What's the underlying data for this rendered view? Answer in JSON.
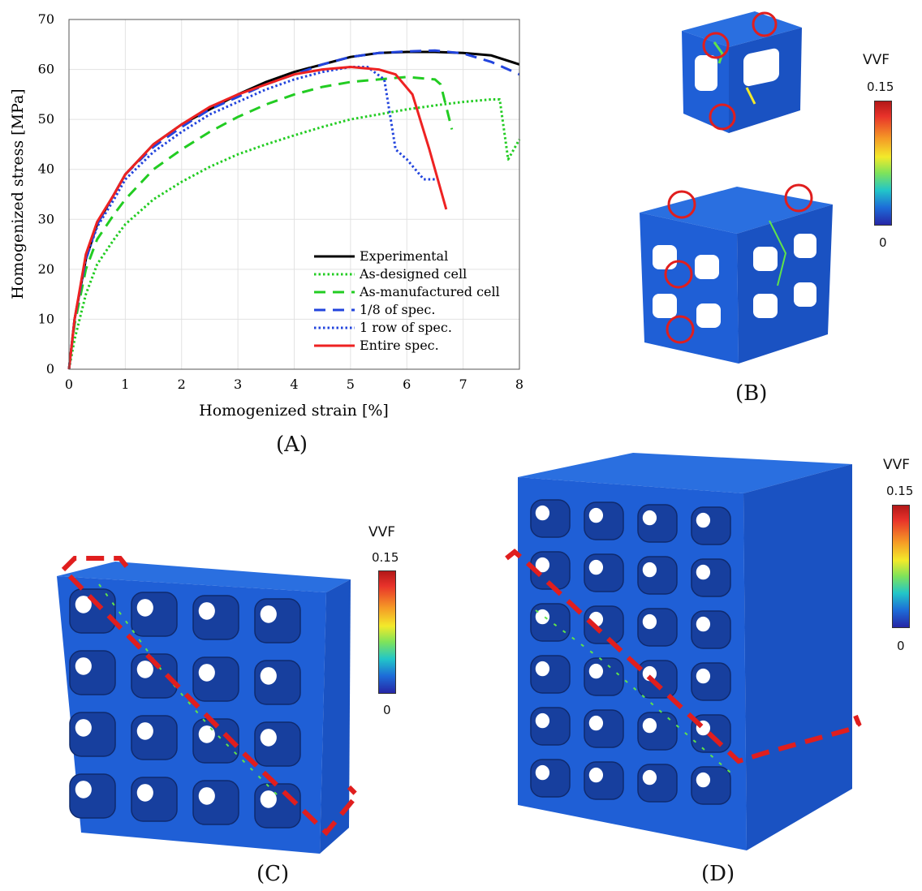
{
  "chart_data": {
    "type": "line",
    "xlabel": "Homogenized strain [%]",
    "ylabel": "Homogenized stress [MPa]",
    "xlim": [
      0,
      8
    ],
    "ylim": [
      0,
      70
    ],
    "xticks": [
      0,
      1,
      2,
      3,
      4,
      5,
      6,
      7,
      8
    ],
    "yticks": [
      0,
      10,
      20,
      30,
      40,
      50,
      60,
      70
    ],
    "grid": true,
    "legend_position": "bottom-right",
    "series": [
      {
        "name": "Experimental",
        "color": "#000000",
        "dash": "solid",
        "x": [
          0,
          0.1,
          0.3,
          0.5,
          0.8,
          1.0,
          1.5,
          2.0,
          2.5,
          3.0,
          3.5,
          4.0,
          4.5,
          5.0,
          5.5,
          6.0,
          6.5,
          7.0,
          7.5,
          8.0
        ],
        "y": [
          0,
          10,
          22,
          29,
          35,
          39,
          45,
          49,
          52,
          55,
          57.5,
          59.5,
          61,
          62.5,
          63.3,
          63.5,
          63.5,
          63.3,
          62.8,
          61
        ]
      },
      {
        "name": "As-designed cell",
        "color": "#22cc22",
        "dash": "dotted",
        "x": [
          0,
          0.1,
          0.3,
          0.5,
          0.8,
          1.0,
          1.5,
          2.0,
          2.5,
          3.0,
          3.5,
          4.0,
          4.5,
          5.0,
          5.5,
          6.0,
          6.5,
          7.0,
          7.5,
          7.65,
          7.8,
          8.0
        ],
        "y": [
          0,
          6,
          15,
          21,
          26,
          29,
          34,
          37.5,
          40.5,
          43,
          45,
          46.8,
          48.5,
          50,
          51,
          52,
          52.8,
          53.5,
          54,
          54,
          42,
          46
        ]
      },
      {
        "name": "As-manufactured cell",
        "color": "#22cc22",
        "dash": "dashed",
        "x": [
          0,
          0.1,
          0.3,
          0.5,
          0.8,
          1.0,
          1.5,
          2.0,
          2.5,
          3.0,
          3.5,
          4.0,
          4.5,
          5.0,
          5.5,
          6.0,
          6.5,
          6.6,
          6.8
        ],
        "y": [
          0,
          9,
          20,
          26,
          31,
          34,
          40,
          44,
          47.5,
          50.5,
          53,
          55,
          56.5,
          57.5,
          58,
          58.5,
          58,
          57,
          48
        ]
      },
      {
        "name": "1/8 of spec.",
        "color": "#2244dd",
        "dash": "dashed",
        "x": [
          0,
          0.1,
          0.3,
          0.5,
          0.8,
          1.0,
          1.5,
          2.0,
          2.5,
          3.0,
          3.5,
          4.0,
          4.5,
          5.0,
          5.5,
          6.0,
          6.5,
          7.0,
          7.5,
          8.0
        ],
        "y": [
          0,
          10,
          22,
          29,
          35,
          39,
          44.5,
          48.5,
          52,
          54.5,
          57,
          59,
          61,
          62.5,
          63.3,
          63.6,
          63.8,
          63.2,
          61.5,
          59
        ]
      },
      {
        "name": "1 row of spec.",
        "color": "#2244dd",
        "dash": "dotted",
        "x": [
          0,
          0.1,
          0.3,
          0.5,
          0.8,
          1.0,
          1.5,
          2.0,
          2.5,
          3.0,
          3.5,
          4.0,
          4.5,
          5.0,
          5.3,
          5.6,
          5.8,
          6.0,
          6.3,
          6.5
        ],
        "y": [
          0,
          10,
          22,
          28.5,
          34,
          38,
          43.5,
          47.5,
          51,
          53.5,
          56,
          58,
          59.5,
          60.5,
          60.5,
          58,
          44,
          42,
          38,
          38
        ]
      },
      {
        "name": "Entire spec.",
        "color": "#ee2222",
        "dash": "solid",
        "x": [
          0,
          0.1,
          0.3,
          0.5,
          0.8,
          1.0,
          1.5,
          2.0,
          2.5,
          3.0,
          3.5,
          4.0,
          4.5,
          5.0,
          5.5,
          5.8,
          6.1,
          6.4,
          6.7
        ],
        "y": [
          0,
          10,
          23,
          29.5,
          35,
          39,
          45,
          49,
          52.5,
          55,
          57,
          59,
          60,
          60.5,
          60,
          59,
          55,
          44,
          32
        ]
      }
    ]
  },
  "panels": {
    "a_label": "(A)",
    "b_label": "(B)",
    "c_label": "(C)",
    "d_label": "(D)"
  },
  "colorbar": {
    "title": "VVF",
    "max": "0.15",
    "min": "0",
    "colors": [
      "#b31818",
      "#f3ea2a",
      "#22c6c8",
      "#2626a6"
    ]
  },
  "render_colors": {
    "lattice_blue": "#1f5fd6",
    "lattice_dark": "#173f9e",
    "highlight_red": "#e01e1e",
    "damage_green": "#5fe34a",
    "damage_yellow": "#f3ea2a"
  }
}
